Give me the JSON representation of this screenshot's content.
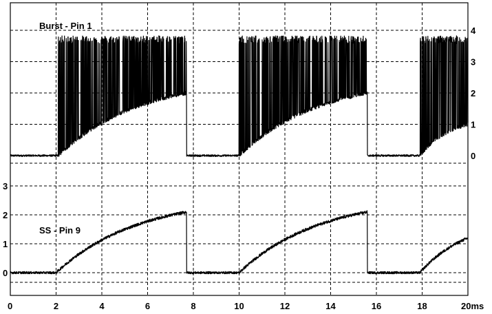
{
  "chart_data": [
    {
      "type": "line",
      "title": "Burst - Pin 1",
      "xlabel": "",
      "ylabel": "",
      "x_unit": "ms",
      "xlim": [
        0,
        20
      ],
      "ylim": [
        0,
        4
      ],
      "x_ticks": [
        "0",
        "2",
        "4",
        "6",
        "8",
        "10",
        "12",
        "14",
        "16",
        "18",
        "20ms"
      ],
      "y_ticks": [
        "0",
        "1",
        "2",
        "3",
        "4"
      ],
      "y_axis_side": "right",
      "grid": true,
      "series": [
        {
          "name": "",
          "shape": "bursts",
          "baseline": 0,
          "burst_peak": 3.7,
          "bursts": [
            {
              "start": 2.1,
              "end": 7.7,
              "envelope_start": 0.0,
              "envelope_end": 2.0
            },
            {
              "start": 10.0,
              "end": 15.6,
              "envelope_start": 0.0,
              "envelope_end": 2.0
            },
            {
              "start": 17.9,
              "end": 20.0,
              "envelope_start": 0.0,
              "envelope_end": 1.0
            }
          ]
        }
      ]
    },
    {
      "type": "line",
      "title": "SS - Pin 9",
      "xlabel": "",
      "ylabel": "",
      "x_unit": "ms",
      "xlim": [
        0,
        20
      ],
      "ylim": [
        0,
        3
      ],
      "x_ticks": [
        "0",
        "2",
        "4",
        "6",
        "8",
        "10",
        "12",
        "14",
        "16",
        "18",
        "20ms"
      ],
      "y_ticks": [
        "0",
        "1",
        "2",
        "3"
      ],
      "y_axis_side": "left",
      "grid": true,
      "series": [
        {
          "name": "",
          "shape": "ramps",
          "baseline": 0,
          "ramps": [
            {
              "start": 2.0,
              "end": 7.7,
              "value_start": 0.0,
              "value_end": 2.1
            },
            {
              "start": 10.0,
              "end": 15.6,
              "value_start": 0.0,
              "value_end": 2.1
            },
            {
              "start": 17.9,
              "end": 20.0,
              "value_start": 0.0,
              "value_end": 1.2
            }
          ]
        }
      ]
    }
  ]
}
